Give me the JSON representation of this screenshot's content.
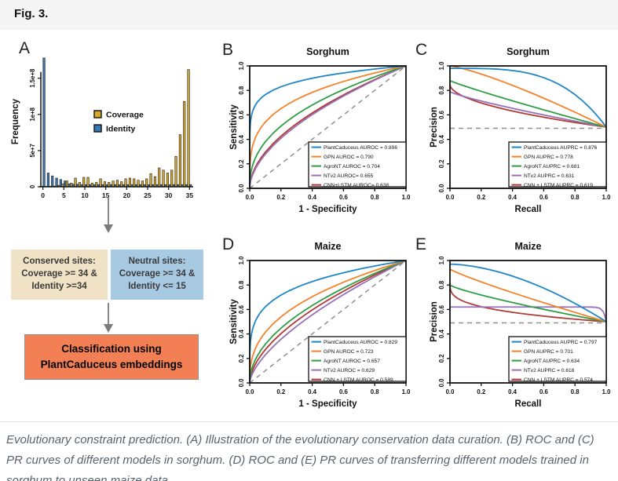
{
  "header": {
    "fig_label": "Fig. 3."
  },
  "panel_letters": {
    "a": "A",
    "b": "B",
    "c": "C",
    "d": "D",
    "e": "E"
  },
  "colors": {
    "header_bg": "#f5f5f6",
    "conserved_box_bg": "#f0e2c4",
    "neutral_box_bg": "#a7c9e2",
    "classification_box_bg": "#f28054",
    "arrow": "#7a7a7a",
    "dashed_reference": "#909090",
    "coverage_bar": "#d9a829",
    "identity_bar": "#3679b5",
    "series_blue": "#1f86c6",
    "series_orange": "#f5822a",
    "series_green": "#2e9e46",
    "series_purple": "#9770b8",
    "series_red": "#b23a34"
  },
  "flowchart": {
    "conserved": {
      "lines": [
        "Conserved sites:",
        "Coverage >= 34 &",
        "Identity >=34"
      ]
    },
    "neutral": {
      "lines": [
        "Neutral sites:",
        "Coverage >= 34 &",
        "Identity <= 15"
      ]
    },
    "classification": {
      "lines": [
        "Classification using",
        "PlantCaduceus embeddings"
      ]
    }
  },
  "caption": "Evolutionary constraint prediction. (A) Illustration of the evolutionary conservation data curation. (B) ROC and (C) PR curves of different models in sorghum. (D) ROC and (E) PR curves of transferring different models trained in sorghum to unseen maize data.",
  "chart_data": [
    {
      "id": "A",
      "type": "bar",
      "title": "",
      "xlabel": "",
      "ylabel": "Frequency",
      "x": [
        0,
        1,
        2,
        3,
        4,
        5,
        6,
        7,
        8,
        9,
        10,
        11,
        12,
        13,
        14,
        15,
        16,
        17,
        18,
        19,
        20,
        21,
        22,
        23,
        24,
        25,
        26,
        27,
        28,
        29,
        30,
        31,
        32,
        33,
        34,
        35
      ],
      "xticks": [
        0,
        5,
        10,
        15,
        20,
        25,
        30,
        35
      ],
      "yticks": [
        {
          "v": 0,
          "label": "0"
        },
        {
          "v": 50000000.0,
          "label": "5e+7"
        },
        {
          "v": 100000000.0,
          "label": "1e+8"
        },
        {
          "v": 150000000.0,
          "label": "1.5e+8"
        }
      ],
      "ylim": [
        0,
        180000000.0
      ],
      "grid": false,
      "legend_position": "center-left-inside",
      "series": [
        {
          "name": "Coverage",
          "color": "#d9a829",
          "values": [
            500000.0,
            500000.0,
            500000.0,
            1000000.0,
            2000000.0,
            4000000.0,
            8000000.0,
            5000000.0,
            12000000.0,
            6000000.0,
            13000000.0,
            13000000.0,
            5000000.0,
            6000000.0,
            11000000.0,
            7000000.0,
            6000000.0,
            8000000.0,
            9000000.0,
            7000000.0,
            11000000.0,
            12000000.0,
            11000000.0,
            9000000.0,
            8000000.0,
            11000000.0,
            18000000.0,
            14000000.0,
            26000000.0,
            23000000.0,
            19000000.0,
            23000000.0,
            42000000.0,
            72000000.0,
            118000000.0,
            162000000.0
          ]
        },
        {
          "name": "Identity",
          "color": "#3679b5",
          "values": [
            178000000.0,
            19000000.0,
            15000000.0,
            12000000.0,
            10000000.0,
            8000000.0,
            4000000.0,
            3500000.0,
            3500000.0,
            3000000.0,
            3000000.0,
            3000000.0,
            3000000.0,
            3000000.0,
            3000000.0,
            3000000.0,
            3000000.0,
            3000000.0,
            3000000.0,
            3000000.0,
            3000000.0,
            3000000.0,
            3000000.0,
            3000000.0,
            3000000.0,
            3000000.0,
            3000000.0,
            3000000.0,
            3000000.0,
            3000000.0,
            3000000.0,
            3000000.0,
            3000000.0,
            3000000.0,
            3000000.0,
            3000000.0
          ]
        }
      ]
    },
    {
      "id": "B",
      "type": "line",
      "kind": "roc",
      "title": "Sorghum",
      "xlabel": "1 - Specificity",
      "ylabel": "Sensitivity",
      "xlim": [
        0,
        1
      ],
      "ylim": [
        0,
        1
      ],
      "ticks": [
        0,
        0.2,
        0.4,
        0.6,
        0.8,
        1
      ],
      "grid": false,
      "diagonal_dashed": true,
      "legend_position": "lower-right-inside",
      "series": [
        {
          "name": "PlantCaduceus",
          "metric": "AUROC",
          "value": 0.896,
          "legend": "PlantCaduceus AUROC = 0.896",
          "color": "#1f86c6",
          "shape_r": 0.116
        },
        {
          "name": "GPN",
          "metric": "AUROC",
          "value": 0.79,
          "legend": "GPN AUROC = 0.790",
          "color": "#f5822a",
          "shape_r": 0.266
        },
        {
          "name": "AgroNT",
          "metric": "AUROC",
          "value": 0.704,
          "legend": "AgroNT AUROC = 0.704",
          "color": "#2e9e46",
          "shape_r": 0.42
        },
        {
          "name": "NTv2",
          "metric": "AUROC",
          "value": 0.655,
          "legend": "NTv2 AUROC= 0.655",
          "color": "#9770b8",
          "shape_r": 0.555
        },
        {
          "name": "CNN+LSTM",
          "metric": "AUROC",
          "value": 0.638,
          "legend": "CNN+LSTM AUROC= 0.638",
          "color": "#b23a34",
          "shape_r": 0.53
        }
      ]
    },
    {
      "id": "C",
      "type": "line",
      "kind": "pr",
      "title": "Sorghum",
      "xlabel": "Recall",
      "ylabel": "Precision",
      "xlim": [
        0,
        1
      ],
      "ylim": [
        0,
        1
      ],
      "ticks": [
        0,
        0.2,
        0.4,
        0.6,
        0.8,
        1
      ],
      "grid": false,
      "baseline_dashed_at": 0.49,
      "legend_position": "lower-right-inside",
      "series": [
        {
          "name": "PlantCaduceus",
          "metric": "AUPRC",
          "value": 0.876,
          "legend": "PlantCaduceus AUPRC = 0.876",
          "color": "#1f86c6",
          "start_precision": 0.98
        },
        {
          "name": "GPN",
          "metric": "AUPRC",
          "value": 0.778,
          "legend": "GPN AUPRC = 0.778",
          "color": "#f5822a",
          "start_precision": 1.0
        },
        {
          "name": "AgroNT",
          "metric": "AUPRC",
          "value": 0.681,
          "legend": "AgroNT AUPRC = 0.681",
          "color": "#2e9e46",
          "start_precision": 0.88
        },
        {
          "name": "NTv2",
          "metric": "AUPRC",
          "value": 0.631,
          "legend": "NTv2 AUPRC = 0.631",
          "color": "#9770b8",
          "start_precision": 0.79
        },
        {
          "name": "CNN + LSTM",
          "metric": "AUPRC",
          "value": 0.619,
          "legend": "CNN + LSTM AUPRC = 0.619",
          "color": "#b23a34",
          "start_precision": 0.85
        }
      ]
    },
    {
      "id": "D",
      "type": "line",
      "kind": "roc",
      "title": "Maize",
      "xlabel": "1 - Specificity",
      "ylabel": "Sensitivity",
      "xlim": [
        0,
        1
      ],
      "ylim": [
        0,
        1
      ],
      "ticks": [
        0,
        0.2,
        0.4,
        0.6,
        0.8,
        1
      ],
      "grid": false,
      "diagonal_dashed": true,
      "legend_position": "lower-right-inside",
      "series": [
        {
          "name": "PlantCaduceus",
          "metric": "AUROC",
          "value": 0.829,
          "legend": "PlantCaduceus AUROC = 0.829",
          "color": "#1f86c6",
          "shape_r": 0.206
        },
        {
          "name": "GPN",
          "metric": "AUROC",
          "value": 0.723,
          "legend": "GPN AUROC = 0.723",
          "color": "#f5822a",
          "shape_r": 0.383
        },
        {
          "name": "AgroNT",
          "metric": "AUROC",
          "value": 0.657,
          "legend": "AgroNT AUROC = 0.657",
          "color": "#2e9e46",
          "shape_r": 0.5
        },
        {
          "name": "NTv2",
          "metric": "AUROC",
          "value": 0.629,
          "legend": "NTv2 AUROC = 0.629",
          "color": "#9770b8",
          "shape_r": 0.64
        },
        {
          "name": "CNN + LSTM",
          "metric": "AUROC",
          "value": 0.589,
          "legend": "CNN + LSTM AUROC = 0.589",
          "color": "#b23a34",
          "shape_r": 0.565
        }
      ]
    },
    {
      "id": "E",
      "type": "line",
      "kind": "pr",
      "title": "Maize",
      "xlabel": "Recall",
      "ylabel": "Precision",
      "xlim": [
        0,
        1
      ],
      "ylim": [
        0,
        1
      ],
      "ticks": [
        0,
        0.2,
        0.4,
        0.6,
        0.8,
        1
      ],
      "grid": false,
      "baseline_dashed_at": 0.49,
      "legend_position": "lower-right-inside",
      "series": [
        {
          "name": "PlantCaduceus",
          "metric": "AUPRC",
          "value": 0.797,
          "legend": "PlantCaduceus AUPRC = 0.797",
          "color": "#1f86c6",
          "start_precision": 0.97
        },
        {
          "name": "GPN",
          "metric": "AUPRC",
          "value": 0.701,
          "legend": "GPN AUPRC = 0.701",
          "color": "#f5822a",
          "start_precision": 0.93
        },
        {
          "name": "AgroNT",
          "metric": "AUPRC",
          "value": 0.634,
          "legend": "AgroNT AUPRC = 0.634",
          "color": "#2e9e46",
          "start_precision": 0.8
        },
        {
          "name": "NTv2",
          "metric": "AUPRC",
          "value": 0.618,
          "legend": "NTv2 AUPRC = 0.618",
          "color": "#9770b8",
          "start_precision": 0.62
        },
        {
          "name": "CNN + LSTM",
          "metric": "AUPRC",
          "value": 0.574,
          "legend": "CNN + LSTM AUPRC = 0.574",
          "color": "#b23a34",
          "start_precision": 0.82
        }
      ]
    }
  ]
}
